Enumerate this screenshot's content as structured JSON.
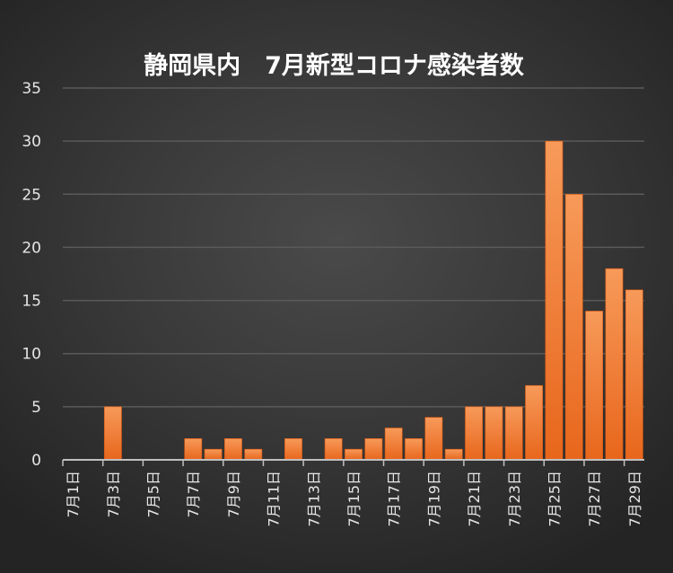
{
  "chart_data": {
    "type": "bar",
    "title": "静岡県内　7月新型コロナ感染者数",
    "xlabel": "",
    "ylabel": "",
    "ylim": [
      0,
      35
    ],
    "yticks": [
      0,
      5,
      10,
      15,
      20,
      25,
      30,
      35
    ],
    "grid": true,
    "categories": [
      "7月1日",
      "7月2日",
      "7月3日",
      "7月4日",
      "7月5日",
      "7月6日",
      "7月7日",
      "7月8日",
      "7月9日",
      "7月10日",
      "7月11日",
      "7月12日",
      "7月13日",
      "7月14日",
      "7月15日",
      "7月16日",
      "7月17日",
      "7月18日",
      "7月19日",
      "7月20日",
      "7月21日",
      "7月22日",
      "7月23日",
      "7月24日",
      "7月25日",
      "7月26日",
      "7月27日",
      "7月28日",
      "7月29日"
    ],
    "tick_labels": [
      "7月1日",
      "7月3日",
      "7月5日",
      "7月7日",
      "7月9日",
      "7月11日",
      "7月13日",
      "7月15日",
      "7月17日",
      "7月19日",
      "7月21日",
      "7月23日",
      "7月25日",
      "7月27日",
      "7月29日"
    ],
    "values": [
      0,
      0,
      5,
      0,
      0,
      0,
      2,
      1,
      2,
      1,
      0,
      2,
      0,
      2,
      1,
      2,
      3,
      2,
      4,
      1,
      5,
      5,
      5,
      7,
      30,
      25,
      14,
      18,
      16
    ],
    "colors": {
      "bar_top": "#f79a5a",
      "bar_bottom": "#e8661c",
      "gridline": "#5a5a5a",
      "axis": "#bfbfbf",
      "text": "#e6e6e6"
    }
  }
}
